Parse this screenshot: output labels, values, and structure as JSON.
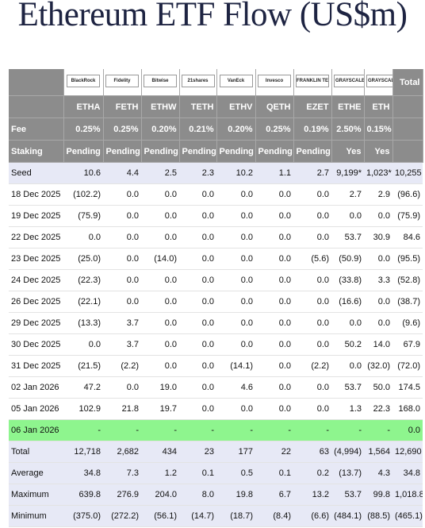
{
  "title": "Ethereum ETF Flow (US$m)",
  "table": {
    "logos": [
      "BlackRock",
      "Fidelity",
      "Bitwise",
      "21shares",
      "VanEck",
      "Invesco",
      "FRANKLIN TEMPLETON",
      "GRAYSCALE",
      "GRAYSCALE"
    ],
    "total_header": "Total",
    "tickers": [
      "ETHA",
      "FETH",
      "ETHW",
      "TETH",
      "ETHV",
      "QETH",
      "EZET",
      "ETHE",
      "ETH"
    ],
    "fee": {
      "label": "Fee",
      "values": [
        "0.25%",
        "0.25%",
        "0.20%",
        "0.21%",
        "0.20%",
        "0.25%",
        "0.19%",
        "2.50%",
        "0.15%"
      ]
    },
    "staking": {
      "label": "Staking",
      "values": [
        "Pending",
        "Pending",
        "Pending",
        "Pending",
        "Pending",
        "Pending",
        "Pending",
        "Yes",
        "Yes"
      ]
    },
    "rows": [
      {
        "label": "Seed",
        "values": [
          "10.6",
          "4.4",
          "2.5",
          "2.3",
          "10.2",
          "1.1",
          "2.7",
          "9,199*",
          "1,023*",
          "10,255"
        ]
      },
      {
        "label": "18 Dec 2025",
        "values": [
          "(102.2)",
          "0.0",
          "0.0",
          "0.0",
          "0.0",
          "0.0",
          "0.0",
          "2.7",
          "2.9",
          "(96.6)"
        ]
      },
      {
        "label": "19 Dec 2025",
        "values": [
          "(75.9)",
          "0.0",
          "0.0",
          "0.0",
          "0.0",
          "0.0",
          "0.0",
          "0.0",
          "0.0",
          "(75.9)"
        ]
      },
      {
        "label": "22 Dec 2025",
        "values": [
          "0.0",
          "0.0",
          "0.0",
          "0.0",
          "0.0",
          "0.0",
          "0.0",
          "53.7",
          "30.9",
          "84.6"
        ]
      },
      {
        "label": "23 Dec 2025",
        "values": [
          "(25.0)",
          "0.0",
          "(14.0)",
          "0.0",
          "0.0",
          "0.0",
          "(5.6)",
          "(50.9)",
          "0.0",
          "(95.5)"
        ]
      },
      {
        "label": "24 Dec 2025",
        "values": [
          "(22.3)",
          "0.0",
          "0.0",
          "0.0",
          "0.0",
          "0.0",
          "0.0",
          "(33.8)",
          "3.3",
          "(52.8)"
        ]
      },
      {
        "label": "26 Dec 2025",
        "values": [
          "(22.1)",
          "0.0",
          "0.0",
          "0.0",
          "0.0",
          "0.0",
          "0.0",
          "(16.6)",
          "0.0",
          "(38.7)"
        ]
      },
      {
        "label": "29 Dec 2025",
        "values": [
          "(13.3)",
          "3.7",
          "0.0",
          "0.0",
          "0.0",
          "0.0",
          "0.0",
          "0.0",
          "0.0",
          "(9.6)"
        ]
      },
      {
        "label": "30 Dec 2025",
        "values": [
          "0.0",
          "3.7",
          "0.0",
          "0.0",
          "0.0",
          "0.0",
          "0.0",
          "50.2",
          "14.0",
          "67.9"
        ]
      },
      {
        "label": "31 Dec 2025",
        "values": [
          "(21.5)",
          "(2.2)",
          "0.0",
          "0.0",
          "(14.1)",
          "0.0",
          "(2.2)",
          "0.0",
          "(32.0)",
          "(72.0)"
        ]
      },
      {
        "label": "02 Jan 2026",
        "values": [
          "47.2",
          "0.0",
          "19.0",
          "0.0",
          "4.6",
          "0.0",
          "0.0",
          "53.7",
          "50.0",
          "174.5"
        ]
      },
      {
        "label": "05 Jan 2026",
        "values": [
          "102.9",
          "21.8",
          "19.7",
          "0.0",
          "0.0",
          "0.0",
          "0.0",
          "1.3",
          "22.3",
          "168.0"
        ]
      },
      {
        "label": "06 Jan 2026",
        "values": [
          "-",
          "-",
          "-",
          "-",
          "-",
          "-",
          "-",
          "-",
          "-",
          "0.0"
        ]
      },
      {
        "label": "Total",
        "values": [
          "12,718",
          "2,682",
          "434",
          "23",
          "177",
          "22",
          "63",
          "(4,994)",
          "1,564",
          "12,690"
        ]
      },
      {
        "label": "Average",
        "values": [
          "34.8",
          "7.3",
          "1.2",
          "0.1",
          "0.5",
          "0.1",
          "0.2",
          "(13.7)",
          "4.3",
          "34.8"
        ]
      },
      {
        "label": "Maximum",
        "values": [
          "639.8",
          "276.9",
          "204.0",
          "8.0",
          "19.8",
          "6.7",
          "13.2",
          "53.7",
          "99.8",
          "1,018.8"
        ]
      },
      {
        "label": "Minimum",
        "values": [
          "(375.0)",
          "(272.2)",
          "(56.1)",
          "(14.7)",
          "(18.7)",
          "(8.4)",
          "(6.6)",
          "(484.1)",
          "(88.5)",
          "(465.1)"
        ]
      }
    ]
  }
}
